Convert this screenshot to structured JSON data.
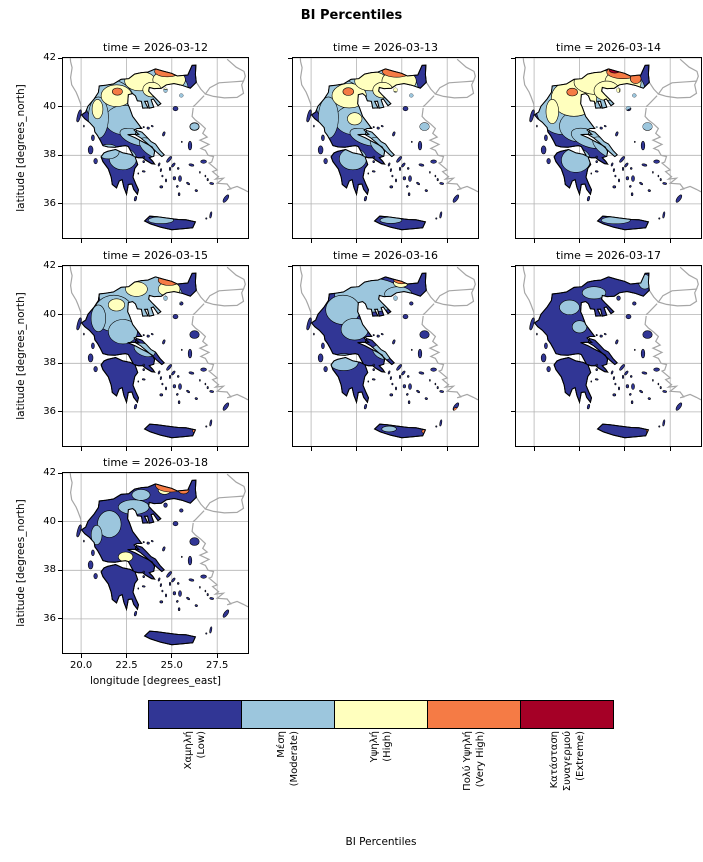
{
  "figure": {
    "suptitle": "BI Percentiles"
  },
  "axes": {
    "ylabel": "latitude [degrees_north]",
    "xlabel": "longitude [degrees_east]",
    "ytick_labels": [
      "42",
      "40",
      "38",
      "36"
    ],
    "xtick_labels": [
      "20.0",
      "22.5",
      "25.0",
      "27.5"
    ]
  },
  "panels": [
    {
      "title": "time = 2026-03-12"
    },
    {
      "title": "time = 2026-03-13"
    },
    {
      "title": "time = 2026-03-14"
    },
    {
      "title": "time = 2026-03-15"
    },
    {
      "title": "time = 2026-03-16"
    },
    {
      "title": "time = 2026-03-17"
    },
    {
      "title": "time = 2026-03-18"
    }
  ],
  "colorbar": {
    "label": "BI Percentiles",
    "categories": [
      {
        "name": "Χαμηλή",
        "english": "(Low)",
        "color": "#313695"
      },
      {
        "name": "Μέση",
        "english": "(Moderate)",
        "color": "#9cc6dd"
      },
      {
        "name": "Υψηλή",
        "english": "(High)",
        "color": "#ffffbe"
      },
      {
        "name": "Πολύ Υψηλή",
        "english": "(Very High)",
        "color": "#f57b45"
      },
      {
        "name": "Κατάσταση\nΣυναγερμού",
        "english": "(Extreme)",
        "color": "#a50026"
      }
    ]
  },
  "chart_data": {
    "type": "heatmap",
    "subtype": "faceted categorical danger maps of Greece (cartopy style, 7 daily facets)",
    "title": "BI Percentiles",
    "facets": [
      "time = 2026-03-12",
      "time = 2026-03-13",
      "time = 2026-03-14",
      "time = 2026-03-15",
      "time = 2026-03-16",
      "time = 2026-03-17",
      "time = 2026-03-18"
    ],
    "xlabel": "longitude [degrees_east]",
    "ylabel": "latitude [degrees_north]",
    "xlim": [
      19.0,
      29.2
    ],
    "ylim": [
      34.6,
      42.0
    ],
    "xticks": [
      20.0,
      22.5,
      25.0,
      27.5
    ],
    "yticks": [
      36,
      38,
      40,
      42
    ],
    "grid": true,
    "legend_position": "horizontal colorbar at bottom",
    "categories": [
      "Χαμηλή (Low)",
      "Μέση (Moderate)",
      "Υψηλή (High)",
      "Πολύ Υψηλή (Very High)",
      "Κατάσταση Συναγερμού (Extreme)"
    ],
    "colors": [
      "#313695",
      "#9cc6dd",
      "#ffffbe",
      "#f57b45",
      "#a50026"
    ],
    "region": "Greece and surrounding Aegean/Ionian coastlines",
    "facet_summaries": [
      "2026-03-12: northern Greece mostly Moderate with High patches; Very High/Extreme band along the northern border; central and southern Greece mostly Low",
      "2026-03-13: similar to 03-12; Moderate across the north with High patches and an Extreme strip on the northern border",
      "2026-03-14: largest High (yellow) extent across Macedonia/Thrace; Very High and Extreme along the northern border; south mostly Low",
      "2026-03-15: Moderate area shrinking in the north; Very High/Extreme persists on the northern border; rest mostly Low",
      "2026-03-16: mostly Low with scattered Moderate patches; small Very High/Extreme spot on the northern border; Very High specks on east Crete and Rhodes",
      "2026-03-17: almost entirely Low; tiny Extreme spot on the northern border",
      "2026-03-18: mostly Low; Very High/Extreme patch on the northern border; isolated High spot in central Greece"
    ]
  }
}
